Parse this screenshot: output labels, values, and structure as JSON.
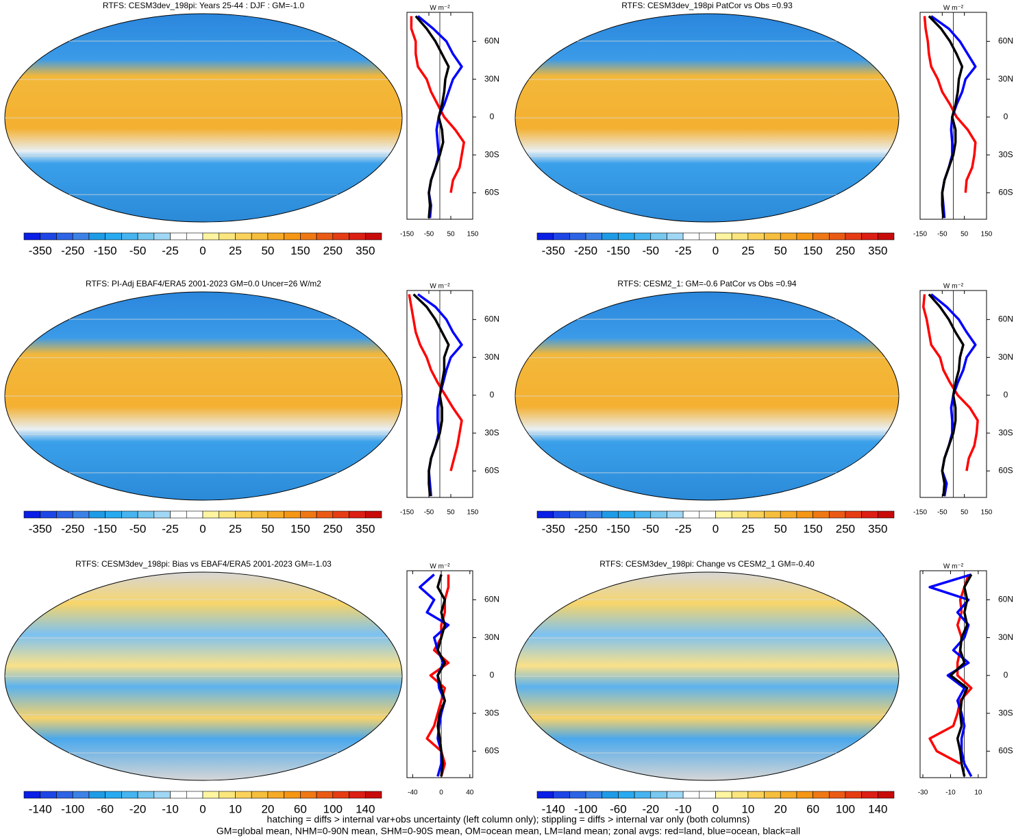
{
  "chart_data": [
    {
      "type": "zonal-map",
      "title": "RTFS: CESM3dev_198pi: Years 25-44 : DJF : GM=-1.0",
      "colorbar_labels": [
        "-350",
        "-250",
        "-150",
        "-50",
        "-25",
        "0",
        "25",
        "50",
        "150",
        "250",
        "350"
      ],
      "units": "W m⁻²",
      "xlim": [
        -150,
        150
      ],
      "xticks": [
        -150,
        -50,
        50,
        150
      ],
      "ylim": [
        -81,
        83
      ],
      "yticks": [
        {
          "value": 60,
          "label": "60N"
        },
        {
          "value": 30,
          "label": "30N"
        },
        0,
        {
          "value": -30,
          "label": "30S"
        },
        {
          "value": -60,
          "label": "60S"
        }
      ],
      "lat": [
        -80,
        -70,
        -60,
        -50,
        -40,
        -30,
        -20,
        -10,
        0,
        10,
        20,
        30,
        40,
        50,
        60,
        70,
        80
      ],
      "series": [
        {
          "color": "#ff0000",
          "values": [
            null,
            null,
            50,
            60,
            90,
            100,
            110,
            70,
            20,
            -10,
            -40,
            -60,
            -100,
            -110,
            -110,
            -130,
            -130
          ]
        },
        {
          "color": "#0000ff",
          "values": [
            -45,
            -40,
            -50,
            -40,
            -20,
            -5,
            -10,
            -15,
            -5,
            20,
            40,
            60,
            100,
            60,
            30,
            -30,
            -100
          ]
        },
        {
          "color": "#000000",
          "values": [
            -50,
            -45,
            -50,
            -40,
            -20,
            0,
            15,
            10,
            -5,
            10,
            20,
            25,
            40,
            10,
            -20,
            -60,
            -110
          ]
        }
      ]
    },
    {
      "type": "zonal-map",
      "title": "RTFS: CESM3dev_198pi PatCor vs Obs =0.93",
      "colorbar_labels": [
        "-350",
        "-250",
        "-150",
        "-50",
        "-25",
        "0",
        "25",
        "50",
        "150",
        "250",
        "350"
      ],
      "units": "W m⁻²",
      "xlim": [
        -150,
        150
      ],
      "xticks": [
        -150,
        -50,
        50,
        150
      ],
      "ylim": [
        -81,
        83
      ],
      "yticks": [
        {
          "value": 60,
          "label": "60N"
        },
        {
          "value": 30,
          "label": "30N"
        },
        0,
        {
          "value": -30,
          "label": "30S"
        },
        {
          "value": -60,
          "label": "60S"
        }
      ],
      "lat": [
        -80,
        -70,
        -60,
        -50,
        -40,
        -30,
        -20,
        -10,
        0,
        10,
        20,
        30,
        40,
        50,
        60,
        70,
        80
      ],
      "series": [
        {
          "color": "#ff0000",
          "values": [
            null,
            null,
            55,
            60,
            85,
            95,
            100,
            65,
            15,
            -15,
            -50,
            -70,
            -100,
            -110,
            -115,
            -125,
            -130
          ]
        },
        {
          "color": "#0000ff",
          "values": [
            -40,
            -45,
            -50,
            -40,
            -20,
            -5,
            -5,
            -10,
            -5,
            15,
            40,
            55,
            100,
            65,
            30,
            -20,
            -100
          ]
        },
        {
          "color": "#000000",
          "values": [
            -45,
            -50,
            -50,
            -40,
            -20,
            0,
            10,
            10,
            -5,
            10,
            20,
            25,
            40,
            15,
            -15,
            -55,
            -110
          ]
        }
      ]
    },
    {
      "type": "zonal-map",
      "title": "RTFS: PI-Adj EBAF4/ERA5 2001-2023 GM=0.0 Uncer=26 W/m2",
      "colorbar_labels": [
        "-350",
        "-250",
        "-150",
        "-50",
        "-25",
        "0",
        "25",
        "50",
        "150",
        "250",
        "350"
      ],
      "units": "W m⁻²",
      "xlim": [
        -150,
        150
      ],
      "xticks": [
        -150,
        -50,
        50,
        150
      ],
      "ylim": [
        -81,
        83
      ],
      "yticks": [
        {
          "value": 60,
          "label": "60N"
        },
        {
          "value": 30,
          "label": "30N"
        },
        0,
        {
          "value": -30,
          "label": "30S"
        },
        {
          "value": -60,
          "label": "60S"
        }
      ],
      "lat": [
        -80,
        -70,
        -60,
        -50,
        -40,
        -30,
        -20,
        -10,
        0,
        10,
        20,
        30,
        40,
        50,
        60,
        70,
        80
      ],
      "series": [
        {
          "color": "#ff0000",
          "values": [
            null,
            null,
            50,
            65,
            80,
            90,
            100,
            60,
            25,
            -10,
            -40,
            -60,
            -90,
            -110,
            -120,
            -130,
            -140
          ]
        },
        {
          "color": "#0000ff",
          "values": [
            -40,
            -45,
            -50,
            -40,
            -20,
            -5,
            -10,
            -10,
            0,
            15,
            30,
            50,
            100,
            60,
            30,
            -20,
            -100
          ]
        },
        {
          "color": "#000000",
          "values": [
            -45,
            -50,
            -50,
            -40,
            -20,
            0,
            10,
            10,
            0,
            10,
            20,
            20,
            40,
            10,
            -20,
            -60,
            -120
          ]
        }
      ]
    },
    {
      "type": "zonal-map",
      "title": "RTFS: CESM2_1: GM=-0.6 PatCor vs Obs =0.94",
      "colorbar_labels": [
        "-350",
        "-250",
        "-150",
        "-50",
        "-25",
        "0",
        "25",
        "50",
        "150",
        "250",
        "350"
      ],
      "units": "W m⁻²",
      "xlim": [
        -150,
        150
      ],
      "xticks": [
        -150,
        -50,
        50,
        150
      ],
      "ylim": [
        -81,
        83
      ],
      "yticks": [
        {
          "value": 60,
          "label": "60N"
        },
        {
          "value": 30,
          "label": "30N"
        },
        0,
        {
          "value": -30,
          "label": "30S"
        },
        {
          "value": -60,
          "label": "60S"
        }
      ],
      "lat": [
        -80,
        -70,
        -60,
        -50,
        -40,
        -30,
        -20,
        -10,
        0,
        10,
        20,
        30,
        40,
        50,
        60,
        70,
        80
      ],
      "series": [
        {
          "color": "#ff0000",
          "values": [
            null,
            null,
            60,
            70,
            95,
            105,
            110,
            75,
            20,
            -15,
            -45,
            -60,
            -100,
            -110,
            -120,
            -135,
            -130
          ]
        },
        {
          "color": "#0000ff",
          "values": [
            -40,
            -30,
            -50,
            -40,
            -20,
            -5,
            -5,
            -10,
            0,
            20,
            45,
            60,
            100,
            60,
            25,
            -30,
            -100
          ]
        },
        {
          "color": "#000000",
          "values": [
            -45,
            -40,
            -50,
            -40,
            -20,
            0,
            10,
            10,
            0,
            10,
            25,
            30,
            45,
            10,
            -20,
            -60,
            -110
          ]
        }
      ]
    },
    {
      "type": "zonal-map",
      "title": "RTFS: CESM3dev_198pi: Bias vs EBAF4/ERA5 2001-2023 GM=-1.03",
      "colorbar_labels": [
        "-140",
        "-100",
        "-60",
        "-20",
        "-10",
        "0",
        "10",
        "20",
        "60",
        "100",
        "140"
      ],
      "units": "W m⁻²",
      "xlim": [
        -48,
        44
      ],
      "xticks": [
        -40,
        0,
        40
      ],
      "ylim": [
        -81,
        83
      ],
      "yticks": [
        {
          "value": 60,
          "label": "60N"
        },
        {
          "value": 30,
          "label": "30N"
        },
        0,
        {
          "value": -30,
          "label": "30S"
        },
        {
          "value": -60,
          "label": "60S"
        }
      ],
      "lat": [
        -80,
        -70,
        -60,
        -50,
        -40,
        -30,
        -20,
        -10,
        0,
        10,
        20,
        30,
        40,
        50,
        60,
        70,
        80
      ],
      "series": [
        {
          "color": "#ff0000",
          "values": [
            0,
            5,
            0,
            -20,
            -10,
            -5,
            0,
            5,
            -15,
            10,
            -10,
            0,
            0,
            5,
            5,
            10,
            10
          ]
        },
        {
          "color": "#0000ff",
          "values": [
            -5,
            0,
            0,
            -5,
            -3,
            0,
            5,
            -3,
            -5,
            3,
            -5,
            -10,
            10,
            -20,
            -10,
            -30,
            -10
          ]
        },
        {
          "color": "#000000",
          "values": [
            0,
            2,
            0,
            -2,
            -5,
            -2,
            5,
            0,
            -5,
            5,
            -5,
            0,
            5,
            0,
            5,
            -5,
            0
          ]
        }
      ]
    },
    {
      "type": "zonal-map",
      "title": "RTFS: CESM3dev_198pi: Change vs CESM2_1 GM=-0.40",
      "colorbar_labels": [
        "-140",
        "-100",
        "-60",
        "-20",
        "-10",
        "0",
        "10",
        "20",
        "60",
        "100",
        "140"
      ],
      "units": "W m⁻²",
      "xlim": [
        -32,
        16
      ],
      "xticks": [
        -30,
        -10,
        10
      ],
      "ylim": [
        -81,
        83
      ],
      "yticks": [
        {
          "value": 60,
          "label": "60N"
        },
        {
          "value": 30,
          "label": "30N"
        },
        0,
        {
          "value": -30,
          "label": "30S"
        },
        {
          "value": -60,
          "label": "60S"
        }
      ],
      "lat": [
        -80,
        -70,
        -60,
        -50,
        -40,
        -30,
        -20,
        -10,
        0,
        10,
        20,
        30,
        40,
        50,
        60,
        70,
        80
      ],
      "series": [
        {
          "color": "#ff0000",
          "values": [
            null,
            -3,
            -20,
            -25,
            -8,
            -5,
            -3,
            5,
            -5,
            -5,
            -3,
            -2,
            -5,
            -2,
            -3,
            0,
            3
          ]
        },
        {
          "color": "#0000ff",
          "values": [
            5,
            0,
            -2,
            -2,
            0,
            -2,
            -5,
            0,
            -12,
            3,
            -8,
            0,
            3,
            -5,
            3,
            -25,
            5
          ]
        },
        {
          "color": "#000000",
          "values": [
            0,
            -2,
            -3,
            -5,
            -2,
            -3,
            -2,
            2,
            -10,
            0,
            -3,
            -2,
            2,
            0,
            2,
            0,
            5
          ]
        }
      ]
    }
  ],
  "footer": [
    "hatching = diffs > internal var+obs uncertainty (left column only); stippling = diffs > internal var only (both columns)",
    "GM=global mean, NHM=0-90N mean, SHM=0-90S mean, OM=ocean mean, LM=land mean; zonal avgs: red=land, blue=ocean, black=all"
  ]
}
